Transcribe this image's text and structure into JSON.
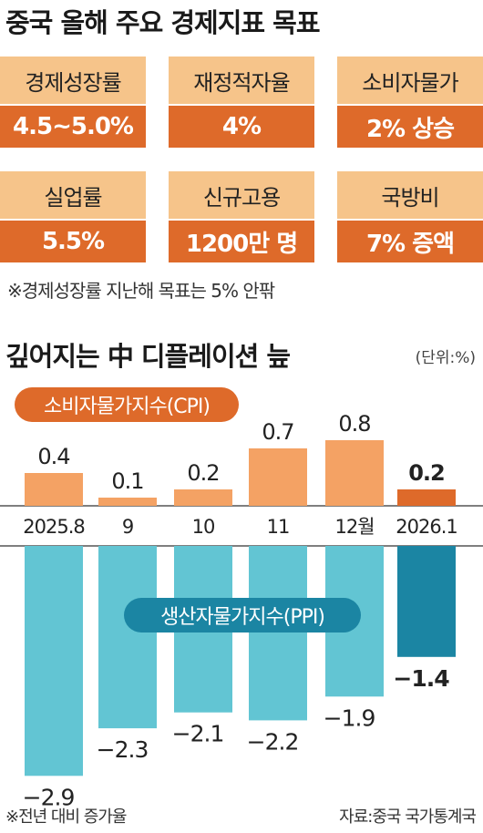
{
  "title": "중국 올해 주요 경제지표 목표",
  "targets": [
    {
      "label": "경제성장률",
      "value": "4.5~5.0%"
    },
    {
      "label": "재정적자율",
      "value": "4%"
    },
    {
      "label": "소비자물가",
      "value": "2% 상승"
    },
    {
      "label": "실업률",
      "value": "5.5%"
    },
    {
      "label": "신규고용",
      "value": "1200만 명"
    },
    {
      "label": "국방비",
      "value": "7% 증액"
    }
  ],
  "targets_note": "※경제성장률 지난해 목표는 5% 안팎",
  "colors": {
    "card_label_bg": "#f6c48a",
    "card_value_bg": "#de6a2a",
    "cpi_bar": "#f4a264",
    "cpi_bar_last": "#de6a2a",
    "ppi_bar": "#62c5d3",
    "ppi_bar_last": "#1b85a3"
  },
  "chart_data": {
    "type": "bar",
    "title": "깊어지는 中 디플레이션 늪",
    "unit": "(단위:%)",
    "categories": [
      "2025.8",
      "9",
      "10",
      "11",
      "12월",
      "2026.1"
    ],
    "series": [
      {
        "name": "소비자물가지수(CPI)",
        "values": [
          0.4,
          0.1,
          0.2,
          0.7,
          0.8,
          0.2
        ],
        "labels": [
          "0.4",
          "0.1",
          "0.2",
          "0.7",
          "0.8",
          "0.2"
        ]
      },
      {
        "name": "생산자물가지수(PPI)",
        "values": [
          -2.9,
          -2.3,
          -2.1,
          -2.2,
          -1.9,
          -1.4
        ],
        "labels": [
          "−2.9",
          "−2.3",
          "−2.1",
          "−2.2",
          "−1.9",
          "−1.4"
        ]
      }
    ],
    "note": "※전년 대비 증가율",
    "source": "자료:중국 국가통계국"
  }
}
